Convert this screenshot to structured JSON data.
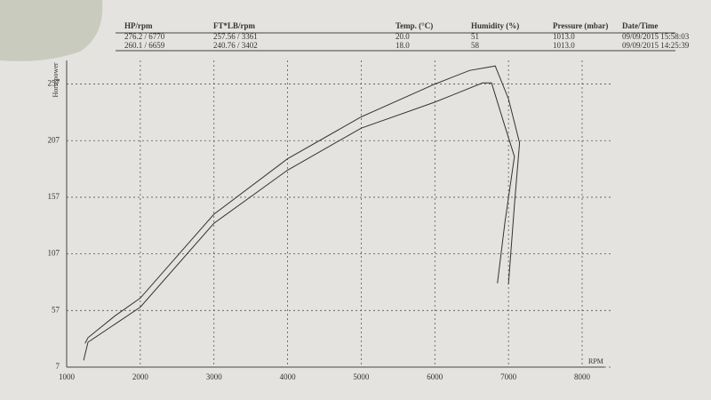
{
  "table": {
    "columns": [
      "HP/rpm",
      "FT*LB/rpm",
      "Temp. (°C)",
      "Humidity (%)",
      "Pressure (mbar)",
      "Date/Time"
    ],
    "rows": [
      [
        "276.2 / 6770",
        "257.56 / 3361",
        "20.0",
        "51",
        "1013.0",
        "09/09/2015 15:58:03"
      ],
      [
        "260.1 / 6659",
        "240.76 / 3402",
        "18.0",
        "58",
        "1013.0",
        "09/09/2015 14:25:39"
      ]
    ]
  },
  "chart_data": {
    "type": "line",
    "ylabel": "Horsepower",
    "xlabel": "RPM",
    "xlim": [
      1000,
      8000
    ],
    "xticks": [
      1000,
      2000,
      3000,
      4000,
      5000,
      6000,
      7000,
      8000
    ],
    "ylim": [
      7,
      270
    ],
    "yticks": [
      7,
      57,
      107,
      157,
      207,
      257
    ],
    "grid": true,
    "series": [
      {
        "color": "#333333",
        "x": [
          1250,
          1290,
          1650,
          2000,
          3000,
          4000,
          5000,
          6000,
          6470,
          6820,
          7000,
          7150,
          7080,
          7000
        ],
        "values": [
          28,
          33,
          52,
          68,
          142,
          191,
          228,
          257,
          269,
          273,
          244,
          205,
          150,
          80
        ]
      },
      {
        "color": "#333333",
        "x": [
          1230,
          1290,
          2000,
          3000,
          4000,
          5000,
          6000,
          6650,
          6770,
          6950,
          7080,
          6950,
          6850
        ],
        "values": [
          13,
          29,
          60,
          134,
          181,
          218,
          241,
          258,
          258,
          220,
          193,
          134,
          81
        ]
      }
    ]
  }
}
